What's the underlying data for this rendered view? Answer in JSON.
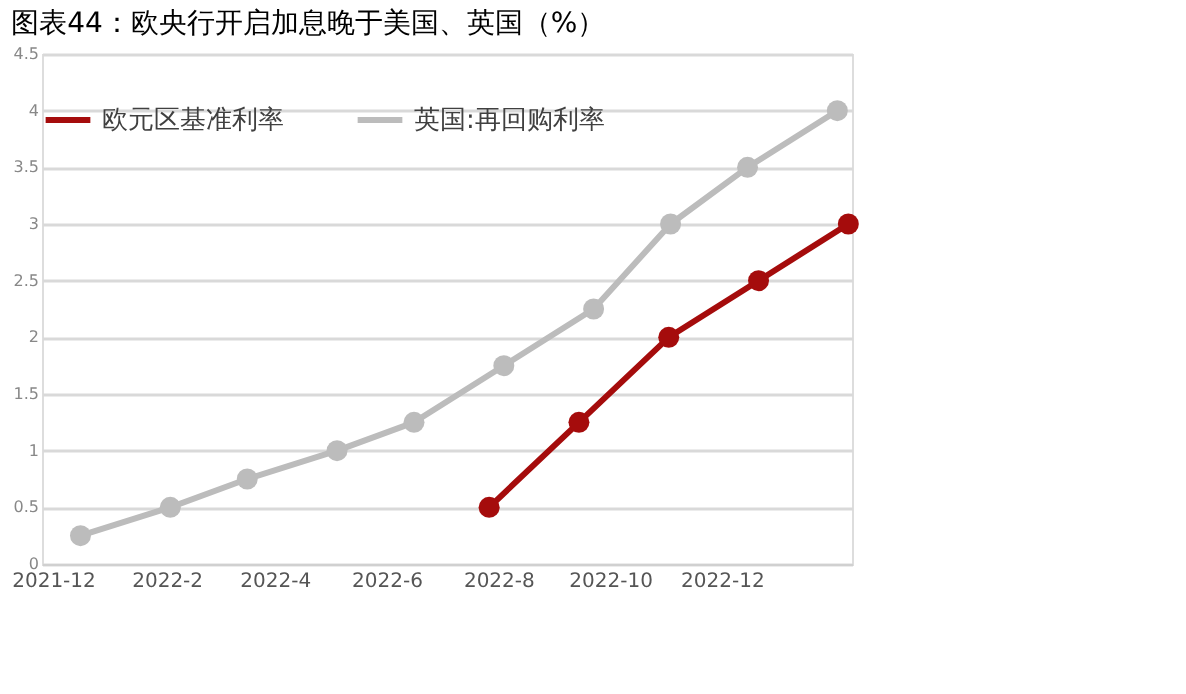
{
  "chart_data": {
    "type": "line",
    "title": "图表44：欧央行开启加息晚于美国、英国（%）",
    "xlim": [
      "2021-11-25",
      "2023-02-10"
    ],
    "xticks": [
      {
        "value": "2021-12",
        "label": "2021-12"
      },
      {
        "value": "2022-02",
        "label": "2022-2"
      },
      {
        "value": "2022-04",
        "label": "2022-4"
      },
      {
        "value": "2022-06",
        "label": "2022-6"
      },
      {
        "value": "2022-08",
        "label": "2022-8"
      },
      {
        "value": "2022-10",
        "label": "2022-10"
      },
      {
        "value": "2022-12",
        "label": "2022-12"
      }
    ],
    "ylim": [
      0,
      4.5
    ],
    "yticks": [
      0,
      0.5,
      1,
      1.5,
      2,
      2.5,
      3,
      3.5,
      4,
      4.5
    ],
    "grid": "y",
    "legend": "top",
    "marker": "circle",
    "line_style": "solid",
    "series": [
      {
        "name": "欧元区基准利率",
        "color": "#a50c0c",
        "x": [
          "2022-07-27",
          "2022-09-14",
          "2022-11-02",
          "2022-12-21",
          "2023-02-08"
        ],
        "values": [
          0.5,
          1.25,
          2.0,
          2.5,
          3.0
        ]
      },
      {
        "name": "英国:再回购利率",
        "color": "#bcbcbc",
        "x": [
          "2021-12-16",
          "2022-02-03",
          "2022-03-17",
          "2022-05-05",
          "2022-06-16",
          "2022-08-04",
          "2022-09-22",
          "2022-11-03",
          "2022-12-15",
          "2023-02-02"
        ],
        "values": [
          0.25,
          0.5,
          0.75,
          1.0,
          1.25,
          1.75,
          2.25,
          3.0,
          3.5,
          4.0
        ]
      }
    ]
  }
}
